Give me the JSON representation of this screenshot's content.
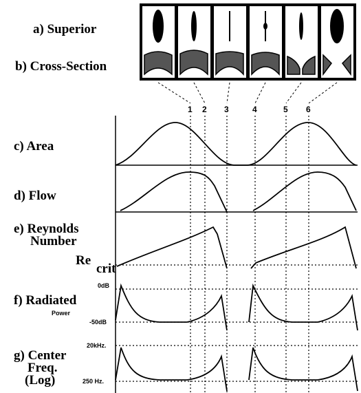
{
  "labels": {
    "superior": "a) Superior",
    "cross_section": "b) Cross-Section",
    "markers": [
      "1",
      "2",
      "3",
      "4",
      "5",
      "6"
    ],
    "area": "c) Area",
    "flow": "d) Flow",
    "reynolds": [
      "e) Reynolds",
      "Number"
    ],
    "re": "Re",
    "crit": "crit",
    "radiated": "f) Radiated",
    "power": "Power",
    "db_top": "0dB",
    "db_bottom": "-50dB",
    "center": [
      "g) Center",
      "Freq.",
      "(Log)"
    ],
    "freq_top": "20kHz.",
    "freq_bottom": "250 Hz."
  }
}
